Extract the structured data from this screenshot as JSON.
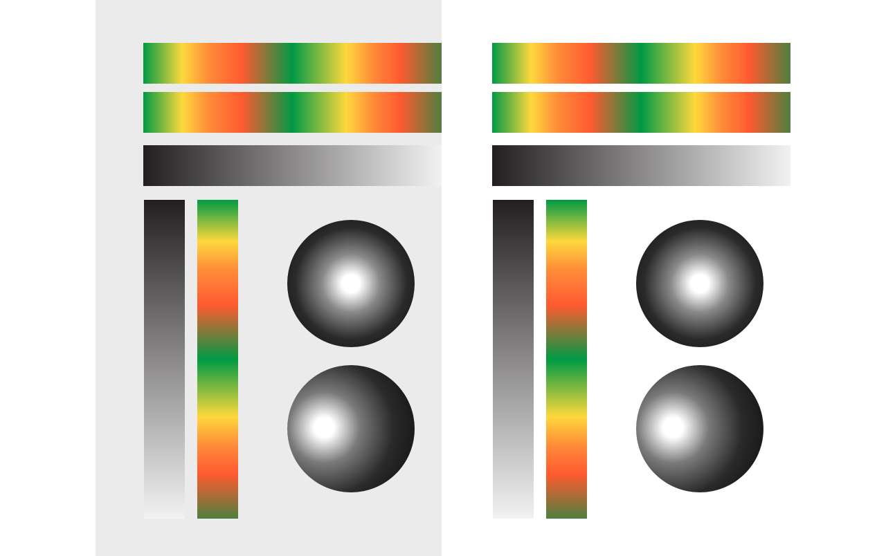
{
  "colors": {
    "panel_background": "#ebebeb",
    "page_background": "#ffffff",
    "spectrum": [
      "#009a44",
      "#fdd83c",
      "#ff8c3a",
      "#ff5a30",
      "#009a44",
      "#fdd83c",
      "#ff5a30",
      "#4f7f3f"
    ],
    "gray_dark": "#231f20",
    "gray_light": "#f2f2f2",
    "sphere_highlight": "#ffffff",
    "sphere_dark": "#0b0b0b"
  }
}
